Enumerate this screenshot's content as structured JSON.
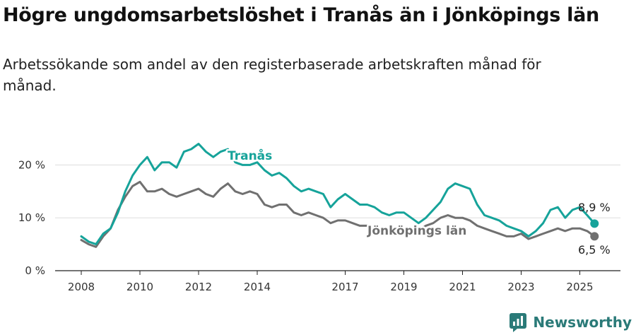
{
  "title": "Högre ungdomsarbetslöshet i Tranås än i Jönköpings län",
  "subtitle": "Arbetssökande som andel av den registerbaserade arbetskraften månad för månad.",
  "brand": "Newsworthy",
  "colors": {
    "tranas": "#16a39a",
    "lan": "#707070",
    "grid": "#dddddd",
    "axis": "#222222"
  },
  "chart_data": {
    "type": "line",
    "x_range": [
      2008,
      2025.75
    ],
    "ylim": [
      0,
      25
    ],
    "x_ticks": [
      {
        "value": 2008,
        "label": "2008"
      },
      {
        "value": 2010,
        "label": "2010"
      },
      {
        "value": 2012,
        "label": "2012"
      },
      {
        "value": 2014,
        "label": "2014"
      },
      {
        "value": 2017,
        "label": "2017"
      },
      {
        "value": 2019,
        "label": "2019"
      },
      {
        "value": 2021,
        "label": "2021"
      },
      {
        "value": 2023,
        "label": "2023"
      },
      {
        "value": 2025,
        "label": "2025"
      }
    ],
    "y_ticks": [
      {
        "value": 0,
        "label": "0 %"
      },
      {
        "value": 10,
        "label": "10 %"
      },
      {
        "value": 20,
        "label": "20 %"
      }
    ],
    "grid": true,
    "series": [
      {
        "name": "Tranås",
        "end_label": "8,9 %",
        "points": [
          [
            2008.0,
            6.5
          ],
          [
            2008.25,
            5.5
          ],
          [
            2008.5,
            5.0
          ],
          [
            2008.75,
            7.0
          ],
          [
            2009.0,
            8.0
          ],
          [
            2009.25,
            11.0
          ],
          [
            2009.5,
            15.0
          ],
          [
            2009.75,
            18.0
          ],
          [
            2010.0,
            20.0
          ],
          [
            2010.25,
            21.5
          ],
          [
            2010.5,
            19.0
          ],
          [
            2010.75,
            20.5
          ],
          [
            2011.0,
            20.5
          ],
          [
            2011.25,
            19.5
          ],
          [
            2011.5,
            22.5
          ],
          [
            2011.75,
            23.0
          ],
          [
            2012.0,
            24.0
          ],
          [
            2012.25,
            22.5
          ],
          [
            2012.5,
            21.5
          ],
          [
            2012.75,
            22.5
          ],
          [
            2013.0,
            23.0
          ],
          [
            2013.25,
            20.5
          ],
          [
            2013.5,
            20.0
          ],
          [
            2013.75,
            20.0
          ],
          [
            2014.0,
            20.5
          ],
          [
            2014.25,
            19.0
          ],
          [
            2014.5,
            18.0
          ],
          [
            2014.75,
            18.5
          ],
          [
            2015.0,
            17.5
          ],
          [
            2015.25,
            16.0
          ],
          [
            2015.5,
            15.0
          ],
          [
            2015.75,
            15.5
          ],
          [
            2016.0,
            15.0
          ],
          [
            2016.25,
            14.5
          ],
          [
            2016.5,
            12.0
          ],
          [
            2016.75,
            13.5
          ],
          [
            2017.0,
            14.5
          ],
          [
            2017.25,
            13.5
          ],
          [
            2017.5,
            12.5
          ],
          [
            2017.75,
            12.5
          ],
          [
            2018.0,
            12.0
          ],
          [
            2018.25,
            11.0
          ],
          [
            2018.5,
            10.5
          ],
          [
            2018.75,
            11.0
          ],
          [
            2019.0,
            11.0
          ],
          [
            2019.25,
            10.0
          ],
          [
            2019.5,
            9.0
          ],
          [
            2019.75,
            10.0
          ],
          [
            2020.0,
            11.5
          ],
          [
            2020.25,
            13.0
          ],
          [
            2020.5,
            15.5
          ],
          [
            2020.75,
            16.5
          ],
          [
            2021.0,
            16.0
          ],
          [
            2021.25,
            15.5
          ],
          [
            2021.5,
            12.5
          ],
          [
            2021.75,
            10.5
          ],
          [
            2022.0,
            10.0
          ],
          [
            2022.25,
            9.5
          ],
          [
            2022.5,
            8.5
          ],
          [
            2022.75,
            8.0
          ],
          [
            2023.0,
            7.5
          ],
          [
            2023.25,
            6.5
          ],
          [
            2023.5,
            7.5
          ],
          [
            2023.75,
            9.0
          ],
          [
            2024.0,
            11.5
          ],
          [
            2024.25,
            12.0
          ],
          [
            2024.5,
            10.0
          ],
          [
            2024.75,
            11.5
          ],
          [
            2025.0,
            12.0
          ],
          [
            2025.25,
            10.5
          ],
          [
            2025.5,
            8.9
          ]
        ]
      },
      {
        "name": "Jönköpings län",
        "end_label": "6,5 %",
        "points": [
          [
            2008.0,
            5.8
          ],
          [
            2008.25,
            5.0
          ],
          [
            2008.5,
            4.5
          ],
          [
            2008.75,
            6.5
          ],
          [
            2009.0,
            8.0
          ],
          [
            2009.25,
            11.5
          ],
          [
            2009.5,
            14.0
          ],
          [
            2009.75,
            16.0
          ],
          [
            2010.0,
            16.8
          ],
          [
            2010.25,
            15.0
          ],
          [
            2010.5,
            15.0
          ],
          [
            2010.75,
            15.5
          ],
          [
            2011.0,
            14.5
          ],
          [
            2011.25,
            14.0
          ],
          [
            2011.5,
            14.5
          ],
          [
            2011.75,
            15.0
          ],
          [
            2012.0,
            15.5
          ],
          [
            2012.25,
            14.5
          ],
          [
            2012.5,
            14.0
          ],
          [
            2012.75,
            15.5
          ],
          [
            2013.0,
            16.5
          ],
          [
            2013.25,
            15.0
          ],
          [
            2013.5,
            14.5
          ],
          [
            2013.75,
            15.0
          ],
          [
            2014.0,
            14.5
          ],
          [
            2014.25,
            12.5
          ],
          [
            2014.5,
            12.0
          ],
          [
            2014.75,
            12.5
          ],
          [
            2015.0,
            12.5
          ],
          [
            2015.25,
            11.0
          ],
          [
            2015.5,
            10.5
          ],
          [
            2015.75,
            11.0
          ],
          [
            2016.0,
            10.5
          ],
          [
            2016.25,
            10.0
          ],
          [
            2016.5,
            9.0
          ],
          [
            2016.75,
            9.5
          ],
          [
            2017.0,
            9.5
          ],
          [
            2017.25,
            9.0
          ],
          [
            2017.5,
            8.5
          ],
          [
            2017.75,
            8.5
          ],
          [
            2018.0,
            8.0
          ],
          [
            2018.25,
            7.5
          ],
          [
            2018.5,
            7.5
          ],
          [
            2018.75,
            8.0
          ],
          [
            2019.0,
            8.0
          ],
          [
            2019.25,
            7.5
          ],
          [
            2019.5,
            7.5
          ],
          [
            2019.75,
            8.5
          ],
          [
            2020.0,
            9.0
          ],
          [
            2020.25,
            10.0
          ],
          [
            2020.5,
            10.5
          ],
          [
            2020.75,
            10.0
          ],
          [
            2021.0,
            10.0
          ],
          [
            2021.25,
            9.5
          ],
          [
            2021.5,
            8.5
          ],
          [
            2021.75,
            8.0
          ],
          [
            2022.0,
            7.5
          ],
          [
            2022.25,
            7.0
          ],
          [
            2022.5,
            6.5
          ],
          [
            2022.75,
            6.5
          ],
          [
            2023.0,
            7.0
          ],
          [
            2023.25,
            6.0
          ],
          [
            2023.5,
            6.5
          ],
          [
            2023.75,
            7.0
          ],
          [
            2024.0,
            7.5
          ],
          [
            2024.25,
            8.0
          ],
          [
            2024.5,
            7.5
          ],
          [
            2024.75,
            8.0
          ],
          [
            2025.0,
            8.0
          ],
          [
            2025.25,
            7.5
          ],
          [
            2025.5,
            6.5
          ]
        ]
      }
    ]
  }
}
